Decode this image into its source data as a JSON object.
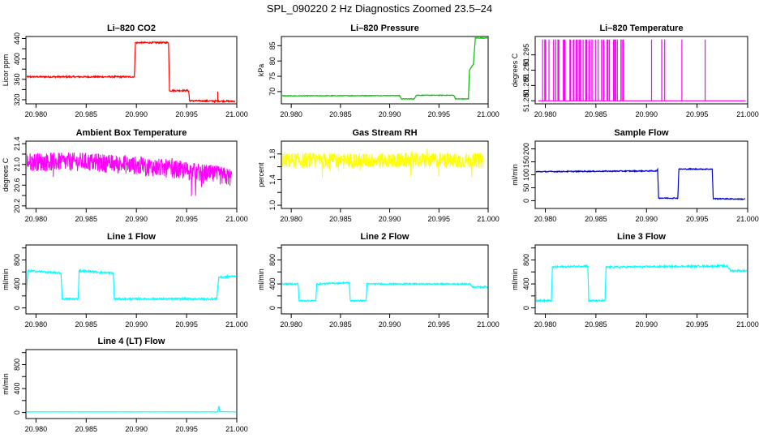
{
  "page_title": "SPL_090220  2 Hz Diagnostics Zoomed 23.5–24",
  "chart_data": [
    {
      "id": "co2",
      "type": "line",
      "title": "Li–820 CO2",
      "ylabel": "Licor ppm",
      "color": "#ff0000",
      "xlim": [
        20.979,
        21.0
      ],
      "ylim": [
        312,
        444
      ],
      "yticks": [
        320,
        340,
        360,
        380,
        400,
        420,
        440
      ],
      "ytick_labels": [
        "320",
        "",
        "360",
        "",
        "400",
        "",
        "440"
      ],
      "xticks": [
        "20.980",
        "20.985",
        "20.990",
        "20.995",
        "21.000"
      ],
      "x": [
        20.979,
        20.9898,
        20.9899,
        20.9932,
        20.9933,
        20.9952,
        20.9953,
        20.9998
      ],
      "y": [
        365,
        365,
        432,
        432,
        338,
        338,
        318,
        317
      ],
      "noise": 1.5
    },
    {
      "id": "pressure",
      "type": "line",
      "title": "Li–820 Pressure",
      "ylabel": "kPa",
      "color": "#00bb00",
      "xlim": [
        20.979,
        21.0
      ],
      "ylim": [
        66,
        88
      ],
      "yticks": [
        70,
        75,
        80,
        85
      ],
      "ytick_labels": [
        "70",
        "75",
        "80",
        "85"
      ],
      "xticks": [
        "20.980",
        "20.985",
        "20.990",
        "20.995",
        "21.000"
      ],
      "x": [
        20.979,
        20.991,
        20.9912,
        20.9925,
        20.9927,
        20.9965,
        20.9967,
        20.998,
        20.9981,
        20.9985,
        20.9987,
        20.9999
      ],
      "y": [
        68.6,
        68.7,
        67.6,
        67.6,
        68.8,
        68.8,
        67.6,
        67.6,
        77,
        79,
        87.5,
        87.5
      ],
      "noise": 0.1
    },
    {
      "id": "temperature",
      "type": "spikes",
      "title": "Li–820 Temperature",
      "ylabel": "degrees C",
      "color": "#ff00ff",
      "xlim": [
        20.979,
        21.0
      ],
      "ylim": [
        51.279,
        51.301
      ],
      "yticks": [
        51.28,
        51.285,
        51.29,
        51.295
      ],
      "ytick_labels": [
        "51.280",
        "51.285",
        "51.290",
        "51.295"
      ],
      "xticks": [
        "20.980",
        "20.985",
        "20.990",
        "20.995",
        "21.000"
      ],
      "base": 51.28,
      "top": 51.3,
      "dense_range": [
        20.9793,
        20.988
      ],
      "spike_x": [
        20.9905,
        20.9915,
        20.9918,
        20.9935,
        20.9958
      ]
    },
    {
      "id": "ambient",
      "type": "noise",
      "title": "Ambient Box Temperature",
      "ylabel": "degrees C",
      "color": "#ff00ff",
      "xlim": [
        20.979,
        21.0
      ],
      "ylim": [
        20.15,
        21.45
      ],
      "yticks": [
        20.2,
        20.4,
        20.6,
        20.8,
        21.0,
        21.2,
        21.4
      ],
      "ytick_labels": [
        "20.2",
        "",
        "20.6",
        "",
        "21.0",
        "",
        "21.4"
      ],
      "xticks": [
        "20.980",
        "20.985",
        "20.990",
        "20.995",
        "21.000"
      ],
      "x": [
        20.979,
        20.985,
        20.99,
        20.995,
        20.9995
      ],
      "y": [
        21.05,
        21.05,
        20.98,
        20.88,
        20.75
      ],
      "spread": 0.18
    },
    {
      "id": "rh",
      "type": "noise",
      "title": "Gas Stream RH",
      "ylabel": "percent",
      "color": "#ffff00",
      "xlim": [
        20.979,
        21.0
      ],
      "ylim": [
        0.95,
        2.0
      ],
      "yticks": [
        1.0,
        1.2,
        1.4,
        1.6,
        1.8
      ],
      "ytick_labels": [
        "1.0",
        "",
        "1.4",
        "",
        "1.8"
      ],
      "xticks": [
        "20.980",
        "20.985",
        "20.990",
        "20.995",
        "21.000"
      ],
      "x": [
        20.979,
        20.9995
      ],
      "y": [
        1.7,
        1.7
      ],
      "spread": 0.12
    },
    {
      "id": "sample",
      "type": "line",
      "title": "Sample Flow",
      "ylabel": "ml/min",
      "color": "#0000cc",
      "xlim": [
        20.979,
        21.0
      ],
      "ylim": [
        -30,
        230
      ],
      "yticks": [
        0,
        50,
        100,
        150,
        200
      ],
      "ytick_labels": [
        "0",
        "50",
        "100",
        "150",
        "200"
      ],
      "xticks": [
        "20.980",
        "20.985",
        "20.990",
        "20.995",
        "21.000"
      ],
      "x": [
        20.979,
        20.991,
        20.9911,
        20.9912,
        20.9931,
        20.9932,
        20.9965,
        20.9966,
        20.9997
      ],
      "y": [
        112,
        115,
        120,
        10,
        10,
        122,
        122,
        8,
        6
      ],
      "noise": 2
    },
    {
      "id": "line1",
      "type": "line",
      "title": "Line 1 Flow",
      "ylabel": "ml/min",
      "color": "#00ffff",
      "xlim": [
        20.979,
        21.0
      ],
      "ylim": [
        -100,
        1050
      ],
      "yticks": [
        0,
        200,
        400,
        600,
        800,
        1000
      ],
      "ytick_labels": [
        "0",
        "",
        "400",
        "",
        "800",
        ""
      ],
      "xticks": [
        "20.980",
        "20.985",
        "20.990",
        "20.995",
        "21.000"
      ],
      "x": [
        20.979,
        20.9792,
        20.9825,
        20.9826,
        20.9842,
        20.9843,
        20.9877,
        20.9878,
        20.998,
        20.9982,
        20.9999
      ],
      "y": [
        150,
        620,
        580,
        150,
        150,
        620,
        580,
        150,
        150,
        510,
        530
      ],
      "noise": 15
    },
    {
      "id": "line2",
      "type": "line",
      "title": "Line 2 Flow",
      "ylabel": "ml/min",
      "color": "#00ffff",
      "xlim": [
        20.979,
        21.0
      ],
      "ylim": [
        -100,
        1050
      ],
      "yticks": [
        0,
        200,
        400,
        600,
        800,
        1000
      ],
      "ytick_labels": [
        "0",
        "",
        "400",
        "",
        "800",
        ""
      ],
      "xticks": [
        "20.980",
        "20.985",
        "20.990",
        "20.995",
        "21.000"
      ],
      "x": [
        20.979,
        20.9807,
        20.9808,
        20.9825,
        20.9826,
        20.9859,
        20.986,
        20.9876,
        20.9877,
        20.9982,
        20.9984,
        20.9999
      ],
      "y": [
        400,
        400,
        120,
        120,
        400,
        420,
        120,
        120,
        400,
        400,
        350,
        350
      ],
      "noise": 10
    },
    {
      "id": "line3",
      "type": "line",
      "title": "Line 3 Flow",
      "ylabel": "ml/min",
      "color": "#00ffff",
      "xlim": [
        20.979,
        21.0
      ],
      "ylim": [
        -100,
        1050
      ],
      "yticks": [
        0,
        200,
        400,
        600,
        800,
        1000
      ],
      "ytick_labels": [
        "0",
        "",
        "400",
        "",
        "800",
        ""
      ],
      "xticks": [
        "20.980",
        "20.985",
        "20.990",
        "20.995",
        "21.000"
      ],
      "x": [
        20.979,
        20.9791,
        20.9806,
        20.9807,
        20.9842,
        20.9843,
        20.9859,
        20.986,
        20.998,
        20.9983,
        20.9999
      ],
      "y": [
        700,
        120,
        120,
        680,
        700,
        120,
        120,
        680,
        700,
        620,
        620
      ],
      "noise": 15
    },
    {
      "id": "line4",
      "type": "line",
      "title": "Line 4 (LT) Flow",
      "ylabel": "ml/min",
      "color": "#00ffff",
      "xlim": [
        20.979,
        21.0
      ],
      "ylim": [
        -100,
        1050
      ],
      "yticks": [
        0,
        200,
        400,
        600,
        800,
        1000
      ],
      "ytick_labels": [
        "0",
        "",
        "400",
        "",
        "800",
        ""
      ],
      "xticks": [
        "20.980",
        "20.985",
        "20.990",
        "20.995",
        "21.000"
      ],
      "x": [
        20.979,
        20.9981,
        20.9982,
        20.9983,
        20.9999
      ],
      "y": [
        10,
        10,
        110,
        15,
        10
      ],
      "noise": 2
    }
  ]
}
